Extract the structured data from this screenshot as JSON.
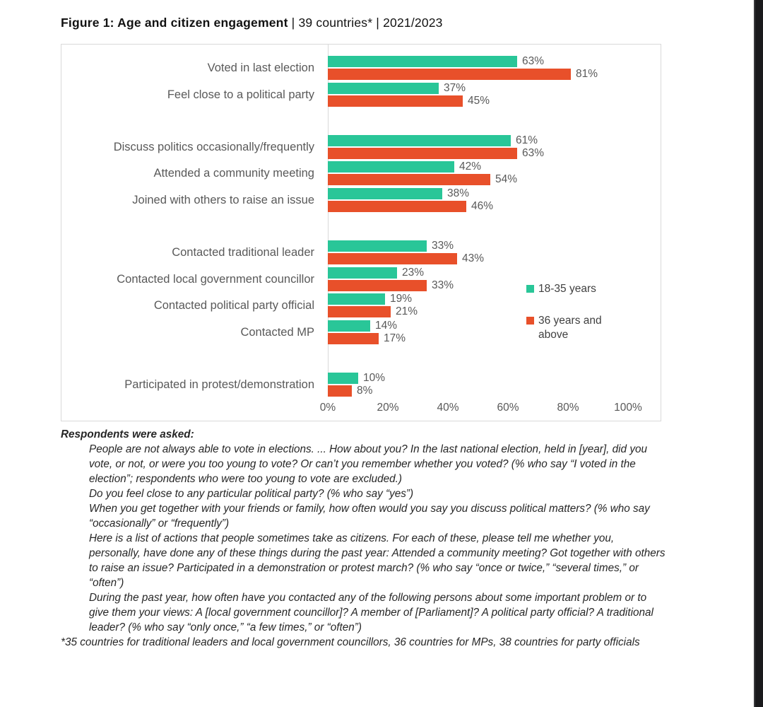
{
  "title": {
    "bold": "Figure 1: Age and citizen engagement",
    "rest": " | 39 countries* | 2021/2023"
  },
  "chart_data": {
    "type": "bar",
    "orientation": "horizontal",
    "title": "Figure 1: Age and citizen engagement | 39 countries* | 2021/2023",
    "categories": [
      "Voted in last election",
      "Feel close to a political party",
      "Discuss politics occasionally/frequently",
      "Attended a community meeting",
      "Joined with others to raise an issue",
      "Contacted traditional leader",
      "Contacted local government councillor",
      "Contacted political party official",
      "Contacted MP",
      "Participated in protest/demonstration"
    ],
    "groups": [
      2,
      3,
      4,
      1
    ],
    "series": [
      {
        "name": "18-35 years",
        "color": "#29c698",
        "values": [
          63,
          37,
          61,
          42,
          38,
          33,
          23,
          19,
          14,
          10
        ]
      },
      {
        "name": "36 years and above",
        "color": "#e8502a",
        "values": [
          81,
          45,
          63,
          54,
          46,
          43,
          33,
          21,
          17,
          8
        ]
      }
    ],
    "value_suffix": "%",
    "x_ticks": [
      "0%",
      "20%",
      "40%",
      "60%",
      "80%",
      "100%"
    ],
    "xlim": [
      0,
      100
    ],
    "grid": false,
    "legend_position": "right"
  },
  "notes": {
    "heading": "Respondents were asked:",
    "paragraphs": [
      "People are not always able to vote in elections. ... How about you? In the last national election, held in [year], did you vote, or not, or were you too young to vote? Or can’t you remember whether you voted? (% who say “I voted in the election”; respondents who were too young to vote are excluded.)",
      "Do you feel close to any particular political party? (% who say “yes”)",
      "When you get together with your friends or family, how often would you say you discuss political matters? (% who say “occasionally” or “frequently”)",
      "Here is a list of actions that people sometimes take as citizens. For each of these, please tell me whether you, personally, have done any of these things during the past year: Attended a community meeting? Got together with others to raise an issue?  Participated in a demonstration or protest march?  (% who say “once or twice,” “several times,” or “often”)",
      "During the past year, how often have you contacted any of the following persons about some important problem or to give them your views: A [local government councillor]? A member of [Parliament]? A political party official? A traditional leader? (% who say “only once,” “a few times,” or “often”)"
    ],
    "footnote": "*35 countries for traditional leaders and local government councillors, 36 countries for MPs, 38 countries for party officials"
  }
}
